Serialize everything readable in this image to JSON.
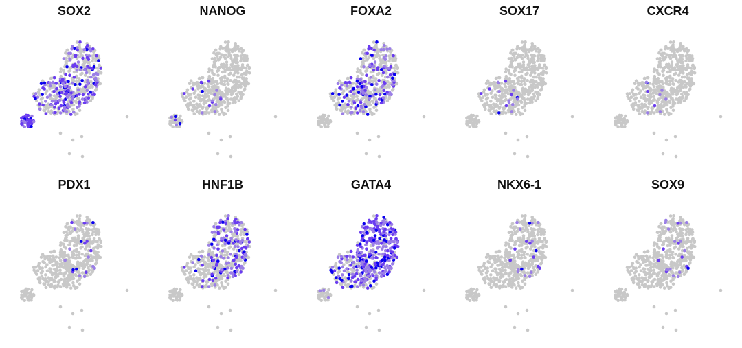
{
  "chart_data": [
    {
      "type": "scatter",
      "title": "SOX2",
      "xlabel": "",
      "ylabel": "",
      "grid": false,
      "legend": "none",
      "expression": {
        "cluster_a": 0.95,
        "cluster_b": 0.45,
        "cluster_c": 0.3
      }
    },
    {
      "type": "scatter",
      "title": "NANOG",
      "xlabel": "",
      "ylabel": "",
      "grid": false,
      "legend": "none",
      "expression": {
        "cluster_a": 0.2,
        "cluster_b": 0.1,
        "cluster_c": 0.0
      }
    },
    {
      "type": "scatter",
      "title": "FOXA2",
      "xlabel": "",
      "ylabel": "",
      "grid": false,
      "legend": "none",
      "expression": {
        "cluster_a": 0.0,
        "cluster_b": 0.3,
        "cluster_c": 0.25
      }
    },
    {
      "type": "scatter",
      "title": "SOX17",
      "xlabel": "",
      "ylabel": "",
      "grid": false,
      "legend": "none",
      "expression": {
        "cluster_a": 0.0,
        "cluster_b": 0.1,
        "cluster_c": 0.0
      }
    },
    {
      "type": "scatter",
      "title": "CXCR4",
      "xlabel": "",
      "ylabel": "",
      "grid": false,
      "legend": "none",
      "expression": {
        "cluster_a": 0.0,
        "cluster_b": 0.06,
        "cluster_c": 0.0
      }
    },
    {
      "type": "scatter",
      "title": "PDX1",
      "xlabel": "",
      "ylabel": "",
      "grid": false,
      "legend": "none",
      "expression": {
        "cluster_a": 0.0,
        "cluster_b": 0.0,
        "cluster_c": 0.05
      }
    },
    {
      "type": "scatter",
      "title": "HNF1B",
      "xlabel": "",
      "ylabel": "",
      "grid": false,
      "legend": "none",
      "expression": {
        "cluster_a": 0.0,
        "cluster_b": 0.15,
        "cluster_c": 0.35
      }
    },
    {
      "type": "scatter",
      "title": "GATA4",
      "xlabel": "",
      "ylabel": "",
      "grid": false,
      "legend": "none",
      "expression": {
        "cluster_a": 0.05,
        "cluster_b": 0.5,
        "cluster_c": 0.8
      }
    },
    {
      "type": "scatter",
      "title": "NKX6-1",
      "xlabel": "",
      "ylabel": "",
      "grid": false,
      "legend": "none",
      "expression": {
        "cluster_a": 0.0,
        "cluster_b": 0.0,
        "cluster_c": 0.05
      }
    },
    {
      "type": "scatter",
      "title": "SOX9",
      "xlabel": "",
      "ylabel": "",
      "grid": false,
      "legend": "none",
      "expression": {
        "cluster_a": 0.0,
        "cluster_b": 0.0,
        "cluster_c": 0.06
      }
    }
  ],
  "colors": {
    "background_cell": "#c8c8c8",
    "low_expression": "#9b7fe6",
    "mid_expression": "#6a3cf0",
    "high_expression": "#0a00f0"
  }
}
